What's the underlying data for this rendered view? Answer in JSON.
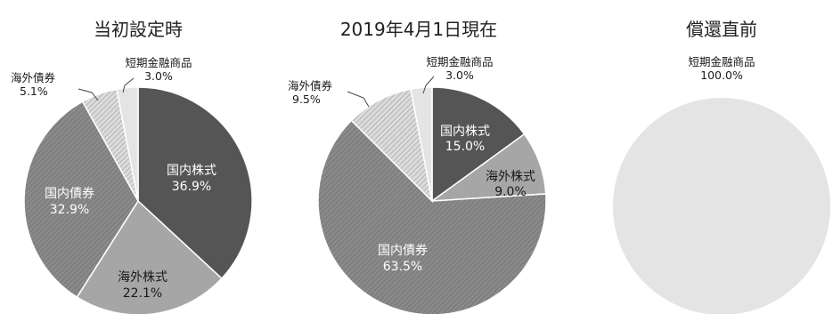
{
  "chart_data": [
    {
      "type": "pie",
      "title": "当初設定時",
      "slices": [
        {
          "label": "国内株式",
          "value": 36.9,
          "display": "36.9%"
        },
        {
          "label": "海外株式",
          "value": 22.1,
          "display": "22.1%"
        },
        {
          "label": "国内債券",
          "value": 32.9,
          "display": "32.9%"
        },
        {
          "label": "海外債券",
          "value": 5.1,
          "display": "5.1%"
        },
        {
          "label": "短期金融商品",
          "value": 3.0,
          "display": "3.0%"
        }
      ]
    },
    {
      "type": "pie",
      "title": "2019年4月1日現在",
      "slices": [
        {
          "label": "国内株式",
          "value": 15.0,
          "display": "15.0%"
        },
        {
          "label": "海外株式",
          "value": 9.0,
          "display": "9.0%"
        },
        {
          "label": "国内債券",
          "value": 63.5,
          "display": "63.5%"
        },
        {
          "label": "海外債券",
          "value": 9.5,
          "display": "9.5%"
        },
        {
          "label": "短期金融商品",
          "value": 3.0,
          "display": "3.0%"
        }
      ]
    },
    {
      "type": "pie",
      "title": "償還直前",
      "slices": [
        {
          "label": "短期金融商品",
          "value": 100.0,
          "display": "100.0%"
        }
      ]
    }
  ],
  "colors": {
    "国内株式": "#555555",
    "海外株式": "#a6a6a6",
    "国内債券": "#8c8c8c",
    "海外債券": "#d4d4d4",
    "短期金融商品": "#e4e4e4"
  }
}
